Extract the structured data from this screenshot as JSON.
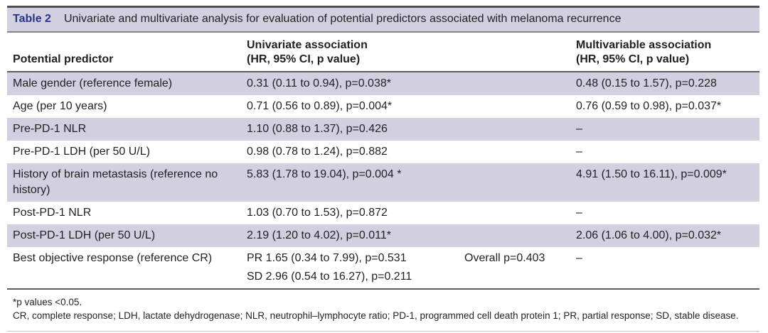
{
  "table": {
    "label": "Table 2",
    "title": "Univariate and multivariate analysis for evaluation of potential predictors associated with melanoma recurrence",
    "columns": {
      "predictor": "Potential predictor",
      "univariate_line1": "Univariate association",
      "univariate_line2": "(HR, 95% CI, p value)",
      "multivariable_line1": "Multivariable association",
      "multivariable_line2": "(HR, 95% CI, p value)"
    },
    "rows": [
      {
        "predictor": "Male gender (reference female)",
        "univariate": "0.31 (0.11 to 0.94), p=0.038*",
        "univariate2": "",
        "overall": "",
        "multivariable": "0.48 (0.15 to 1.57), p=0.228",
        "shaded": true
      },
      {
        "predictor": "Age (per 10 years)",
        "univariate": "0.71 (0.56 to 0.89), p=0.004*",
        "univariate2": "",
        "overall": "",
        "multivariable": "0.76 (0.59 to 0.98), p=0.037*",
        "shaded": false
      },
      {
        "predictor": "Pre-PD-1 NLR",
        "univariate": "1.10 (0.88 to 1.37), p=0.426",
        "univariate2": "",
        "overall": "",
        "multivariable": "–",
        "shaded": true
      },
      {
        "predictor": "Pre-PD-1 LDH (per 50 U/L)",
        "univariate": "0.98 (0.78 to 1.24), p=0.882",
        "univariate2": "",
        "overall": "",
        "multivariable": "–",
        "shaded": false
      },
      {
        "predictor": "History of brain metastasis (reference no history)",
        "univariate": "5.83 (1.78 to 19.04), p=0.004 *",
        "univariate2": "",
        "overall": "",
        "multivariable": "4.91 (1.50 to 16.11), p=0.009*",
        "shaded": true
      },
      {
        "predictor": "Post-PD-1 NLR",
        "univariate": "1.03 (0.70 to 1.53), p=0.872",
        "univariate2": "",
        "overall": "",
        "multivariable": "–",
        "shaded": false
      },
      {
        "predictor": "Post-PD-1 LDH (per 50 U/L)",
        "univariate": "2.19 (1.20 to 4.02), p=0.011*",
        "univariate2": "",
        "overall": "",
        "multivariable": "2.06 (1.06 to 4.00), p=0.032*",
        "shaded": true
      },
      {
        "predictor": "Best objective response (reference CR)",
        "univariate": "PR 1.65 (0.34 to 7.99), p=0.531",
        "univariate2": "SD 2.96 (0.54 to 16.27), p=0.211",
        "overall": "Overall p=0.403",
        "multivariable": "–",
        "shaded": false
      }
    ],
    "footnotes": {
      "line1": "*p values <0.05.",
      "line2": "CR, complete response; LDH, lactate dehydrogenase; NLR, neutrophil–lymphocyte ratio; PD-1, programmed cell death protein 1; PR, partial response; SD, stable disease."
    },
    "colors": {
      "row_lavender": "#d2cfe1",
      "label_blue": "#27348b",
      "text": "#231f20"
    }
  }
}
